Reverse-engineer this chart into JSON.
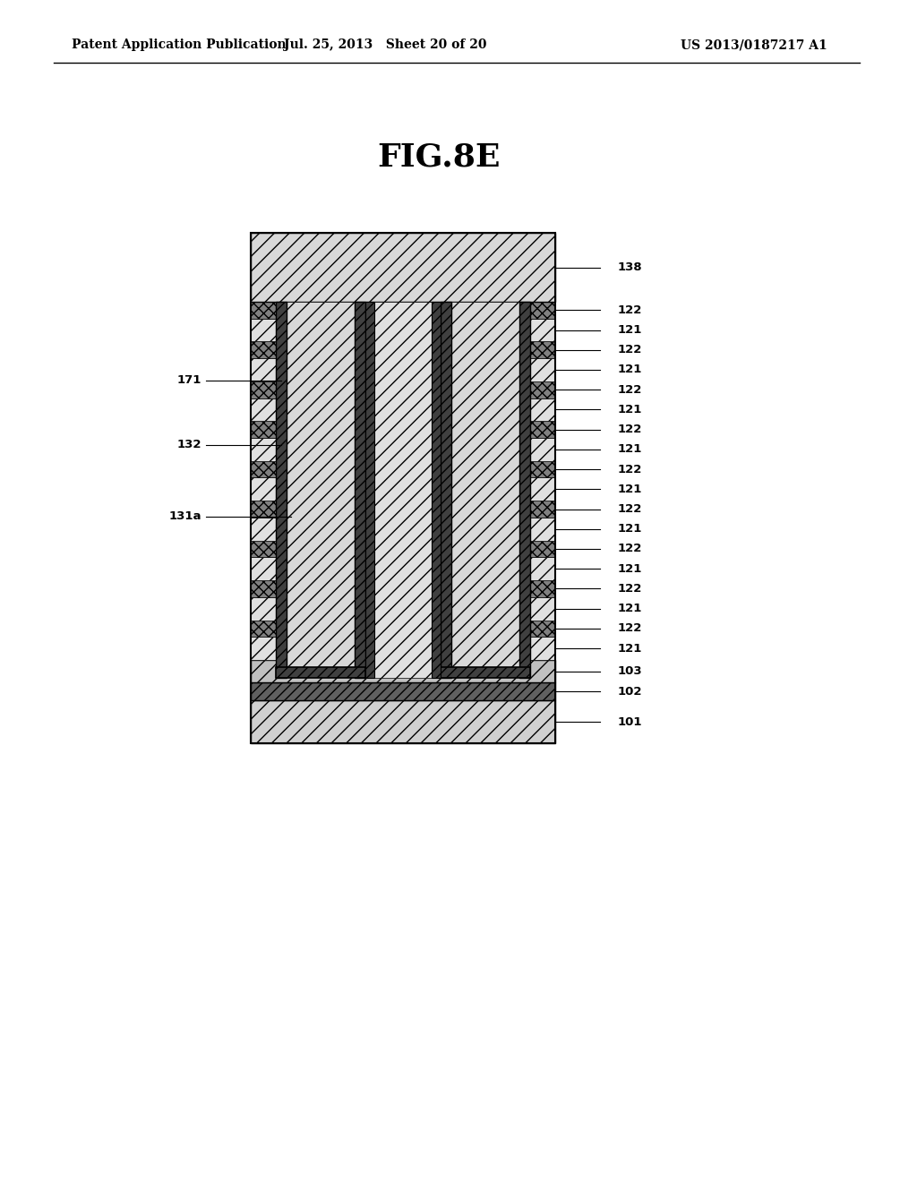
{
  "title": "FIG.8E",
  "header_left": "Patent Application Publication",
  "header_mid": "Jul. 25, 2013   Sheet 20 of 20",
  "header_right": "US 2013/0187217 A1",
  "bg_color": "#ffffff",
  "n_pairs": 9
}
